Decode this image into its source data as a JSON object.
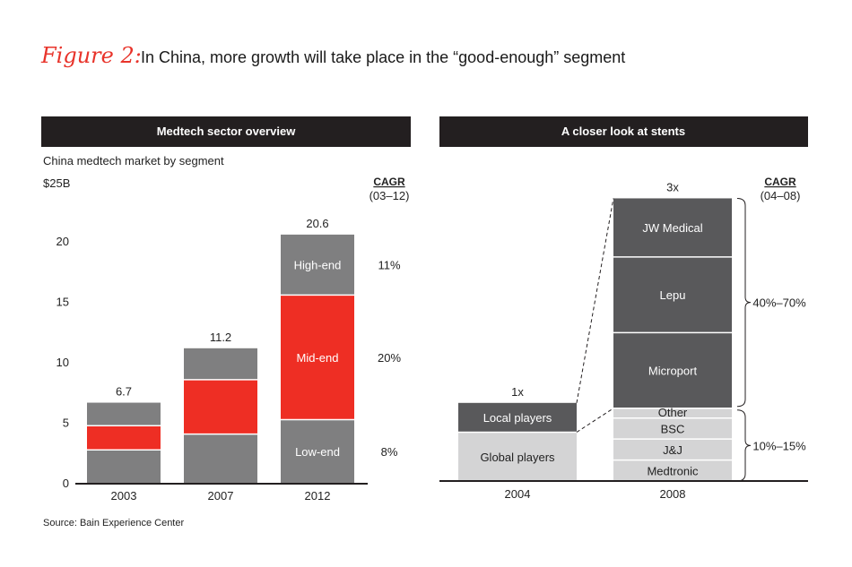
{
  "figure": {
    "label": "Figure 2:",
    "title": "In China, more growth will take place in the “good-enough” segment",
    "source": "Source: Bain Experience Center"
  },
  "colors": {
    "header_bg": "#231f20",
    "mid_gray": "#7f7f80",
    "red": "#ee2e24",
    "dark_gray": "#59595b",
    "light_gray": "#d4d4d5",
    "axis": "#231f20"
  },
  "chart_data": [
    {
      "type": "bar",
      "stacked": true,
      "header": "Medtech sector overview",
      "subtitle": "China medtech market by segment",
      "ylabel": "$25B",
      "ylim": [
        0,
        25
      ],
      "yticks": [
        "0",
        "5",
        "10",
        "15",
        "20"
      ],
      "categories": [
        "2003",
        "2007",
        "2012"
      ],
      "totals": [
        "6.7",
        "11.2",
        "20.6"
      ],
      "cagr_header": "CAGR",
      "cagr_period": "(03–12)",
      "series": [
        {
          "name": "Low-end",
          "values": [
            2.8,
            4.1,
            5.3
          ],
          "color": "#7f7f80",
          "label": "Low-end",
          "cagr": "8%"
        },
        {
          "name": "Mid-end",
          "values": [
            2.0,
            4.5,
            10.3
          ],
          "color": "#ee2e24",
          "label": "Mid-end",
          "cagr": "20%"
        },
        {
          "name": "High-end",
          "values": [
            1.9,
            2.6,
            5.0
          ],
          "color": "#7f7f80",
          "label": "High-end",
          "cagr": "11%"
        }
      ]
    },
    {
      "type": "bar",
      "stacked": true,
      "header": "A closer look at stents",
      "categories": [
        "2004",
        "2008"
      ],
      "totals": [
        "1x",
        "3x"
      ],
      "cagr_header": "CAGR",
      "cagr_period": "(04–08)",
      "bars": [
        {
          "category": "2004",
          "segments": [
            {
              "name": "Global players",
              "value": 1.0,
              "color": "#d4d4d5"
            },
            {
              "name": "Local players",
              "value": 0.6,
              "color": "#59595b"
            }
          ]
        },
        {
          "category": "2008",
          "segments": [
            {
              "name": "Medtronic",
              "value": 0.43,
              "color": "#d4d4d5"
            },
            {
              "name": "J&J",
              "value": 0.43,
              "color": "#d4d4d5"
            },
            {
              "name": "BSC",
              "value": 0.43,
              "color": "#d4d4d5"
            },
            {
              "name": "Other",
              "value": 0.2,
              "color": "#d4d4d5"
            },
            {
              "name": "Microport",
              "value": 1.55,
              "color": "#59595b"
            },
            {
              "name": "Lepu",
              "value": 1.55,
              "color": "#59595b"
            },
            {
              "name": "JW Medical",
              "value": 1.2,
              "color": "#59595b"
            }
          ]
        }
      ],
      "cagr_groups": [
        {
          "name": "Local players",
          "cagr": "40%–70%"
        },
        {
          "name": "Global players",
          "cagr": "10%–15%"
        }
      ]
    }
  ]
}
